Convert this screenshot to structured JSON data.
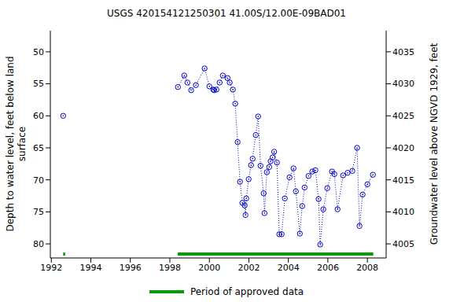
{
  "chart_data": {
    "type": "line",
    "title": "USGS 420154121250301 41.00S/12.00E-09BAD01",
    "y_label": "Depth to water level, feet below land surface",
    "y2_label": "Groundwater level above NGVD 1929, feet",
    "x": [
      1992.6,
      1995.5,
      1998.41,
      1998.73,
      1998.89,
      1999.08,
      1999.32,
      1999.76,
      2000.0,
      2000.2,
      2000.24,
      2000.36,
      2000.52,
      2000.68,
      2000.92,
      2001.03,
      2001.19,
      2001.31,
      2001.43,
      2001.55,
      2001.67,
      2001.79,
      2001.83,
      2001.87,
      2001.99,
      2002.11,
      2002.19,
      2002.35,
      2002.47,
      2002.59,
      2002.75,
      2002.79,
      2002.91,
      2003.03,
      2003.1,
      2003.2,
      2003.28,
      2003.42,
      2003.54,
      2003.66,
      2003.82,
      2004.06,
      2004.26,
      2004.38,
      2004.58,
      2004.7,
      2004.82,
      2005.02,
      2005.21,
      2005.37,
      2005.53,
      2005.61,
      2005.77,
      2005.97,
      2006.21,
      2006.33,
      2006.49,
      2006.77,
      2007.0,
      2007.24,
      2007.48,
      2007.6,
      2007.76,
      2008.0,
      2008.28
    ],
    "values": [
      60.0,
      null,
      55.5,
      53.7,
      54.8,
      56.0,
      55.2,
      52.6,
      55.4,
      55.9,
      56.0,
      55.9,
      54.8,
      53.7,
      54.1,
      54.8,
      55.9,
      58.1,
      64.1,
      70.3,
      73.6,
      74.0,
      75.5,
      72.9,
      69.9,
      67.7,
      66.7,
      63.0,
      60.1,
      67.8,
      72.1,
      75.2,
      68.8,
      68.0,
      67.1,
      66.5,
      65.6,
      67.3,
      78.5,
      78.5,
      72.9,
      69.6,
      68.2,
      71.8,
      78.4,
      74.1,
      71.2,
      69.4,
      68.7,
      68.5,
      73.0,
      80.1,
      74.6,
      71.3,
      68.7,
      69.1,
      74.6,
      69.3,
      68.9,
      68.6,
      65.0,
      77.2,
      72.3,
      70.7,
      69.2
    ],
    "color": "#0000cc",
    "marker": "circle",
    "line_style": "dotted",
    "xlim": [
      1991.95,
      2008.95
    ],
    "xticks": [
      1992,
      1994,
      1996,
      1998,
      2000,
      2002,
      2004,
      2006,
      2008
    ],
    "ylim": [
      46.7,
      82.2
    ],
    "yticks": [
      50,
      55,
      60,
      65,
      70,
      75,
      80
    ],
    "y2lim": [
      4002.8,
      4038.3
    ],
    "y2ticks": [
      4005,
      4010,
      4015,
      4020,
      4025,
      4030,
      4035
    ],
    "grid": false,
    "legend": "bottom",
    "approved_data": {
      "label": "Period of approved data",
      "color": "#00a000",
      "periods": [
        [
          1992.6,
          1992.7
        ],
        [
          1998.4,
          2008.3
        ]
      ]
    }
  }
}
